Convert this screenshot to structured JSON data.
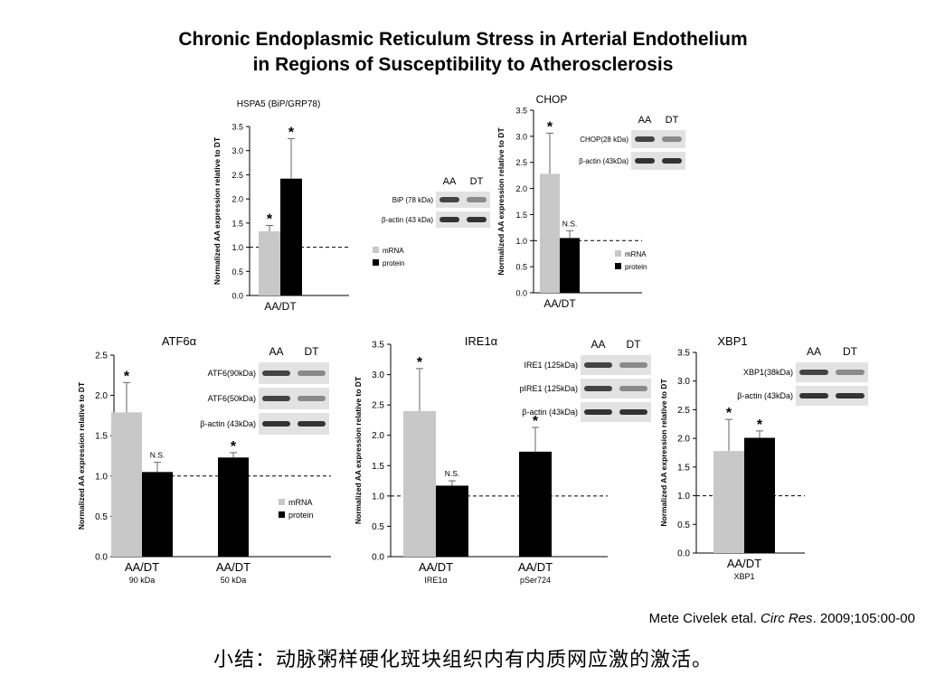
{
  "slide": {
    "title_line1": "Chronic Endoplasmic Reticulum Stress in Arterial Endothelium",
    "title_line2": "in Regions of Susceptibility to Atherosclerosis",
    "citation_authors": "Mete Civelek etal. ",
    "citation_journal": "Circ Res",
    "citation_rest": ". 2009;105:00-00",
    "summary": "小结：动脉粥样硬化斑块组织内有内质网应激的激活。"
  },
  "colors": {
    "mrna": "#c8c8c8",
    "mrna_dark": "#aaaaaa",
    "protein": "#000000",
    "error": "#666666"
  },
  "chart_data": [
    {
      "id": "hspa5",
      "type": "bar",
      "title": "HSPA5 (BiP/GRP78)",
      "ylabel": "Normalized AA expression relative to DT",
      "ylim": [
        0,
        3.5
      ],
      "yticks": [
        "0.0",
        "0.5",
        "1.0",
        "1.5",
        "2.0",
        "2.5",
        "3.0",
        "3.5"
      ],
      "reference_line": 1.0,
      "groups": [
        {
          "label": "AA/DT",
          "sublabel": "",
          "bars": [
            {
              "series": "mRNA",
              "value": 1.33,
              "error": 0.12,
              "annotation": "*"
            },
            {
              "series": "protein",
              "value": 2.42,
              "error": 0.83,
              "annotation": "*"
            }
          ]
        }
      ],
      "legend": [
        "mRNA",
        "protein"
      ],
      "blot": {
        "columns": [
          "AA",
          "DT"
        ],
        "rows": [
          "BiP (78 kDa)",
          "β-actin (43 kDa)"
        ]
      }
    },
    {
      "id": "chop",
      "type": "bar",
      "title": "CHOP",
      "ylabel": "Normalized AA expression relative to DT",
      "ylim": [
        0,
        3.5
      ],
      "yticks": [
        "0.0",
        "0.5",
        "1.0",
        "1.5",
        "2.0",
        "2.5",
        "3.0",
        "3.5"
      ],
      "reference_line": 1.0,
      "groups": [
        {
          "label": "AA/DT",
          "sublabel": "",
          "bars": [
            {
              "series": "mRNA",
              "value": 2.28,
              "error": 0.78,
              "annotation": "*"
            },
            {
              "series": "protein",
              "value": 1.05,
              "error": 0.14,
              "annotation": "N.S."
            }
          ]
        }
      ],
      "legend": [
        "mRNA",
        "protein"
      ],
      "blot": {
        "columns": [
          "AA",
          "DT"
        ],
        "rows": [
          "CHOP(28 kDa)",
          "β-actin (43kDa)"
        ]
      }
    },
    {
      "id": "atf6",
      "type": "bar",
      "title": "ATF6α",
      "ylabel": "Normalized AA expression relative to DT",
      "ylim": [
        0,
        2.5
      ],
      "yticks": [
        "0.0",
        "0.5",
        "1.0",
        "1.5",
        "2.0",
        "2.5"
      ],
      "reference_line": 1.0,
      "groups": [
        {
          "label": "AA/DT",
          "sublabel": "90 kDa",
          "bars": [
            {
              "series": "mRNA",
              "value": 1.79,
              "error": 0.37,
              "annotation": "*"
            },
            {
              "series": "protein",
              "value": 1.05,
              "error": 0.12,
              "annotation": "N.S."
            }
          ]
        },
        {
          "label": "AA/DT",
          "sublabel": "50 kDa",
          "bars": [
            {
              "series": "protein",
              "value": 1.23,
              "error": 0.06,
              "annotation": "*"
            }
          ]
        }
      ],
      "legend": [
        "mRNA",
        "protein"
      ],
      "blot": {
        "columns": [
          "AA",
          "DT"
        ],
        "rows": [
          "ATF6(90kDa)",
          "ATF6(50kDa)",
          "β-actin (43kDa)"
        ]
      }
    },
    {
      "id": "ire1",
      "type": "bar",
      "title": "IRE1α",
      "ylabel": "Normalized AA expression relative to DT",
      "ylim": [
        0,
        3.5
      ],
      "yticks": [
        "0.0",
        "0.5",
        "1.0",
        "1.5",
        "2.0",
        "2.5",
        "3.0",
        "3.5"
      ],
      "reference_line": 1.0,
      "groups": [
        {
          "label": "AA/DT",
          "sublabel": "IRE1α",
          "bars": [
            {
              "series": "mRNA",
              "value": 2.4,
              "error": 0.7,
              "annotation": "*"
            },
            {
              "series": "protein",
              "value": 1.17,
              "error": 0.08,
              "annotation": "N.S."
            }
          ]
        },
        {
          "label": "AA/DT",
          "sublabel": "pSer724",
          "bars": [
            {
              "series": "protein",
              "value": 1.73,
              "error": 0.4,
              "annotation": "*"
            }
          ]
        }
      ],
      "legend": [],
      "blot": {
        "columns": [
          "AA",
          "DT"
        ],
        "rows": [
          "IRE1 (125kDa)",
          "pIRE1 (125kDa)",
          "β-actin (43kDa)"
        ]
      }
    },
    {
      "id": "xbp1",
      "type": "bar",
      "title": "XBP1",
      "ylabel": "Normalized AA expression relative to DT",
      "ylim": [
        0,
        3.5
      ],
      "yticks": [
        "0.0",
        "0.5",
        "1.0",
        "1.5",
        "2.0",
        "2.5",
        "3.0",
        "3.5"
      ],
      "reference_line": 1.0,
      "groups": [
        {
          "label": "AA/DT",
          "sublabel": "XBP1",
          "bars": [
            {
              "series": "mRNA",
              "value": 1.78,
              "error": 0.55,
              "annotation": "*"
            },
            {
              "series": "protein",
              "value": 2.01,
              "error": 0.12,
              "annotation": "*"
            }
          ]
        }
      ],
      "legend": [],
      "blot": {
        "columns": [
          "AA",
          "DT"
        ],
        "rows": [
          "XBP1(38kDa)",
          "β-actin (43kDa)"
        ]
      }
    }
  ]
}
